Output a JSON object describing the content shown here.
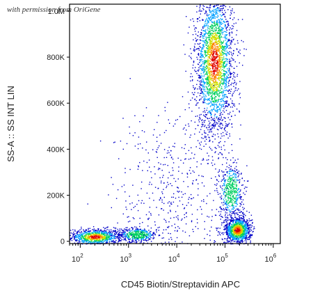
{
  "watermark": "with permission from OriGene",
  "chart_data": {
    "type": "scatter",
    "title": "",
    "xlabel": "CD45 Biotin/Streptavidin APC",
    "ylabel": "SS-A :: SS INT LIN",
    "x_scale": "log",
    "y_scale": "linear",
    "xlim": [
      60,
      1400000
    ],
    "ylim": [
      -10000,
      1030000
    ],
    "x_ticks": [
      {
        "value": 100,
        "label": "10",
        "exp": "2"
      },
      {
        "value": 1000,
        "label": "10",
        "exp": "3"
      },
      {
        "value": 10000,
        "label": "10",
        "exp": "4"
      },
      {
        "value": 100000,
        "label": "10",
        "exp": "5"
      },
      {
        "value": 1000000,
        "label": "10",
        "exp": "6"
      }
    ],
    "y_ticks": [
      {
        "value": 0,
        "label": "0"
      },
      {
        "value": 200000,
        "label": "200K"
      },
      {
        "value": 400000,
        "label": "400K"
      },
      {
        "value": 600000,
        "label": "600K"
      },
      {
        "value": 800000,
        "label": "800K"
      },
      {
        "value": 1000000,
        "label": "1.0M"
      }
    ],
    "density_colors": [
      "#0000c8",
      "#00a0ff",
      "#00d060",
      "#d0e000",
      "#ff8000",
      "#e00000"
    ],
    "populations": [
      {
        "name": "",
        "x_center": 200,
        "y_center": 20000,
        "x_spread_log": 0.28,
        "y_spread": 18000,
        "count": 900
      },
      {
        "name": "",
        "x_center": 1500,
        "y_center": 30000,
        "x_spread_log": 0.2,
        "y_spread": 15000,
        "count": 450
      },
      {
        "name": "",
        "x_center": 60000,
        "y_center": 780000,
        "x_spread_log": 0.2,
        "y_spread": 160000,
        "count": 2600
      },
      {
        "name": "",
        "x_center": 180000,
        "y_center": 50000,
        "x_spread_log": 0.14,
        "y_spread": 30000,
        "count": 1100
      },
      {
        "name": "",
        "x_center": 130000,
        "y_center": 220000,
        "x_spread_log": 0.12,
        "y_spread": 60000,
        "count": 500
      },
      {
        "name": "",
        "x_center": 8000,
        "y_center": 200000,
        "x_spread_log": 0.6,
        "y_spread": 200000,
        "count": 500
      }
    ]
  }
}
